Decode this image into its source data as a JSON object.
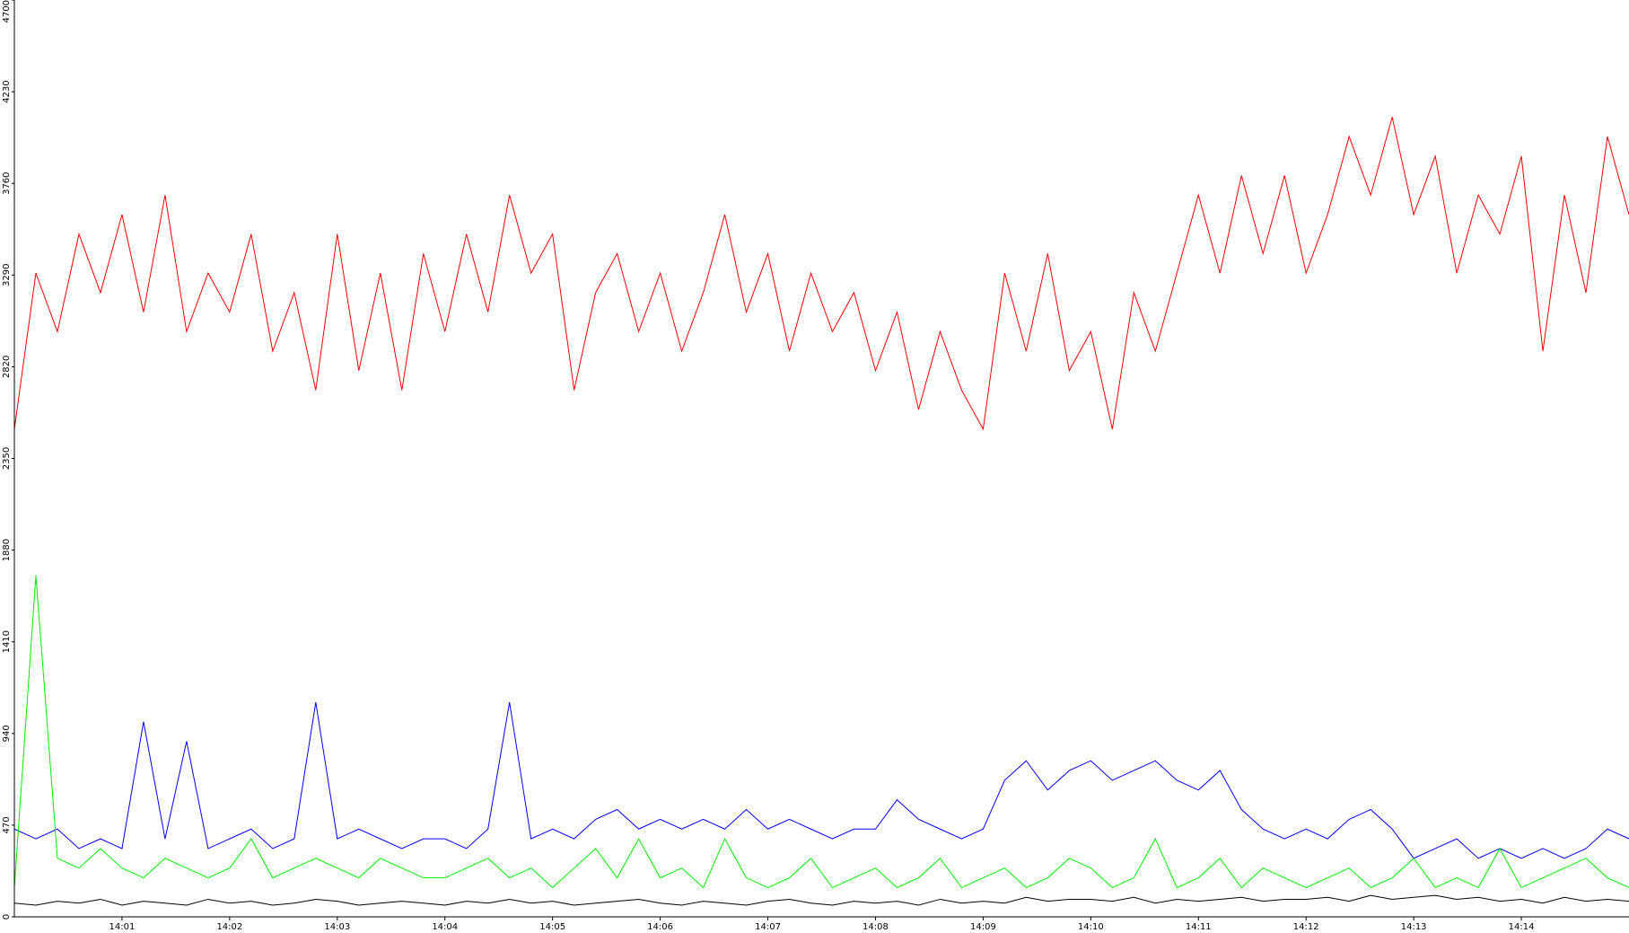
{
  "chart_data": {
    "type": "line",
    "x": [
      840.0,
      840.2,
      840.4,
      840.6,
      840.8,
      841.0,
      841.2,
      841.4,
      841.6,
      841.8,
      842.0,
      842.2,
      842.4,
      842.6,
      842.8,
      843.0,
      843.2,
      843.4,
      843.6,
      843.8,
      844.0,
      844.2,
      844.4,
      844.6,
      844.8,
      845.0,
      845.2,
      845.4,
      845.6,
      845.8,
      846.0,
      846.2,
      846.4,
      846.6,
      846.8,
      847.0,
      847.2,
      847.4,
      847.6,
      847.8,
      848.0,
      848.2,
      848.4,
      848.6,
      848.8,
      849.0,
      849.2,
      849.4,
      849.6,
      849.8,
      850.0,
      850.2,
      850.4,
      850.6,
      850.8,
      851.0,
      851.2,
      851.4,
      851.6,
      851.8,
      852.0,
      852.2,
      852.4,
      852.6,
      852.8,
      853.0,
      853.2,
      853.4,
      853.6,
      853.8,
      854.0,
      854.2,
      854.4,
      854.6,
      854.8,
      855.0
    ],
    "series": [
      {
        "color": "#ff0000",
        "values": [
          2500,
          3300,
          3000,
          3500,
          3200,
          3600,
          3100,
          3700,
          3000,
          3300,
          3100,
          3500,
          2900,
          3200,
          2700,
          3500,
          2800,
          3300,
          2700,
          3400,
          3000,
          3500,
          3100,
          3700,
          3300,
          3500,
          2700,
          3200,
          3400,
          3000,
          3300,
          2900,
          3200,
          3600,
          3100,
          3400,
          2900,
          3300,
          3000,
          3200,
          2800,
          3100,
          2600,
          3000,
          2700,
          2500,
          3300,
          2900,
          3400,
          2800,
          3000,
          2500,
          3200,
          2900,
          3300,
          3700,
          3300,
          3800,
          3400,
          3800,
          3300,
          3600,
          4000,
          3700,
          4100,
          3600,
          3900,
          3300,
          3700,
          3500,
          3900,
          2900,
          3700,
          3200,
          4000,
          3600
        ]
      },
      {
        "color": "#0000ff",
        "values": [
          450,
          400,
          450,
          350,
          400,
          350,
          1000,
          400,
          900,
          350,
          400,
          450,
          350,
          400,
          1100,
          400,
          450,
          400,
          350,
          400,
          400,
          350,
          450,
          1100,
          400,
          450,
          400,
          500,
          550,
          450,
          500,
          450,
          500,
          450,
          550,
          450,
          500,
          450,
          400,
          450,
          450,
          600,
          500,
          450,
          400,
          450,
          700,
          800,
          650,
          750,
          800,
          700,
          750,
          800,
          700,
          650,
          750,
          550,
          450,
          400,
          450,
          400,
          500,
          550,
          450,
          300,
          350,
          400,
          300,
          350,
          300,
          350,
          300,
          350,
          450,
          400
        ]
      },
      {
        "color": "#00ee00",
        "values": [
          150,
          1750,
          300,
          250,
          350,
          250,
          200,
          300,
          250,
          200,
          250,
          400,
          200,
          250,
          300,
          250,
          200,
          300,
          250,
          200,
          200,
          250,
          300,
          200,
          250,
          150,
          250,
          350,
          200,
          400,
          200,
          250,
          150,
          400,
          200,
          150,
          200,
          300,
          150,
          200,
          250,
          150,
          200,
          300,
          150,
          200,
          250,
          150,
          200,
          300,
          250,
          150,
          200,
          400,
          150,
          200,
          300,
          150,
          250,
          200,
          150,
          200,
          250,
          150,
          200,
          300,
          150,
          200,
          150,
          350,
          150,
          200,
          250,
          300,
          200,
          150
        ]
      },
      {
        "color": "#000000",
        "values": [
          70,
          60,
          80,
          70,
          90,
          60,
          80,
          70,
          60,
          90,
          70,
          80,
          60,
          70,
          90,
          80,
          60,
          70,
          80,
          70,
          60,
          80,
          70,
          90,
          70,
          80,
          60,
          70,
          80,
          90,
          70,
          60,
          80,
          70,
          60,
          80,
          90,
          70,
          60,
          80,
          70,
          80,
          60,
          90,
          70,
          80,
          70,
          100,
          80,
          90,
          90,
          80,
          100,
          70,
          90,
          80,
          90,
          100,
          80,
          90,
          90,
          100,
          80,
          110,
          90,
          100,
          110,
          90,
          100,
          80,
          90,
          70,
          100,
          80,
          90,
          80
        ]
      }
    ],
    "xlim": [
      840,
      855
    ],
    "xticks": [
      {
        "value": 841,
        "label": "14:01"
      },
      {
        "value": 842,
        "label": "14:02"
      },
      {
        "value": 843,
        "label": "14:03"
      },
      {
        "value": 844,
        "label": "14:04"
      },
      {
        "value": 845,
        "label": "14:05"
      },
      {
        "value": 846,
        "label": "14:06"
      },
      {
        "value": 847,
        "label": "14:07"
      },
      {
        "value": 848,
        "label": "14:08"
      },
      {
        "value": 849,
        "label": "14:09"
      },
      {
        "value": 850,
        "label": "14:10"
      },
      {
        "value": 851,
        "label": "14:11"
      },
      {
        "value": 852,
        "label": "14:12"
      },
      {
        "value": 853,
        "label": "14:13"
      },
      {
        "value": 854,
        "label": "14:14"
      }
    ],
    "ylim": [
      0,
      4700
    ],
    "yticks": [
      0,
      470,
      940,
      1410,
      1880,
      2350,
      2820,
      3290,
      3760,
      4230,
      4700
    ],
    "grid": false
  }
}
